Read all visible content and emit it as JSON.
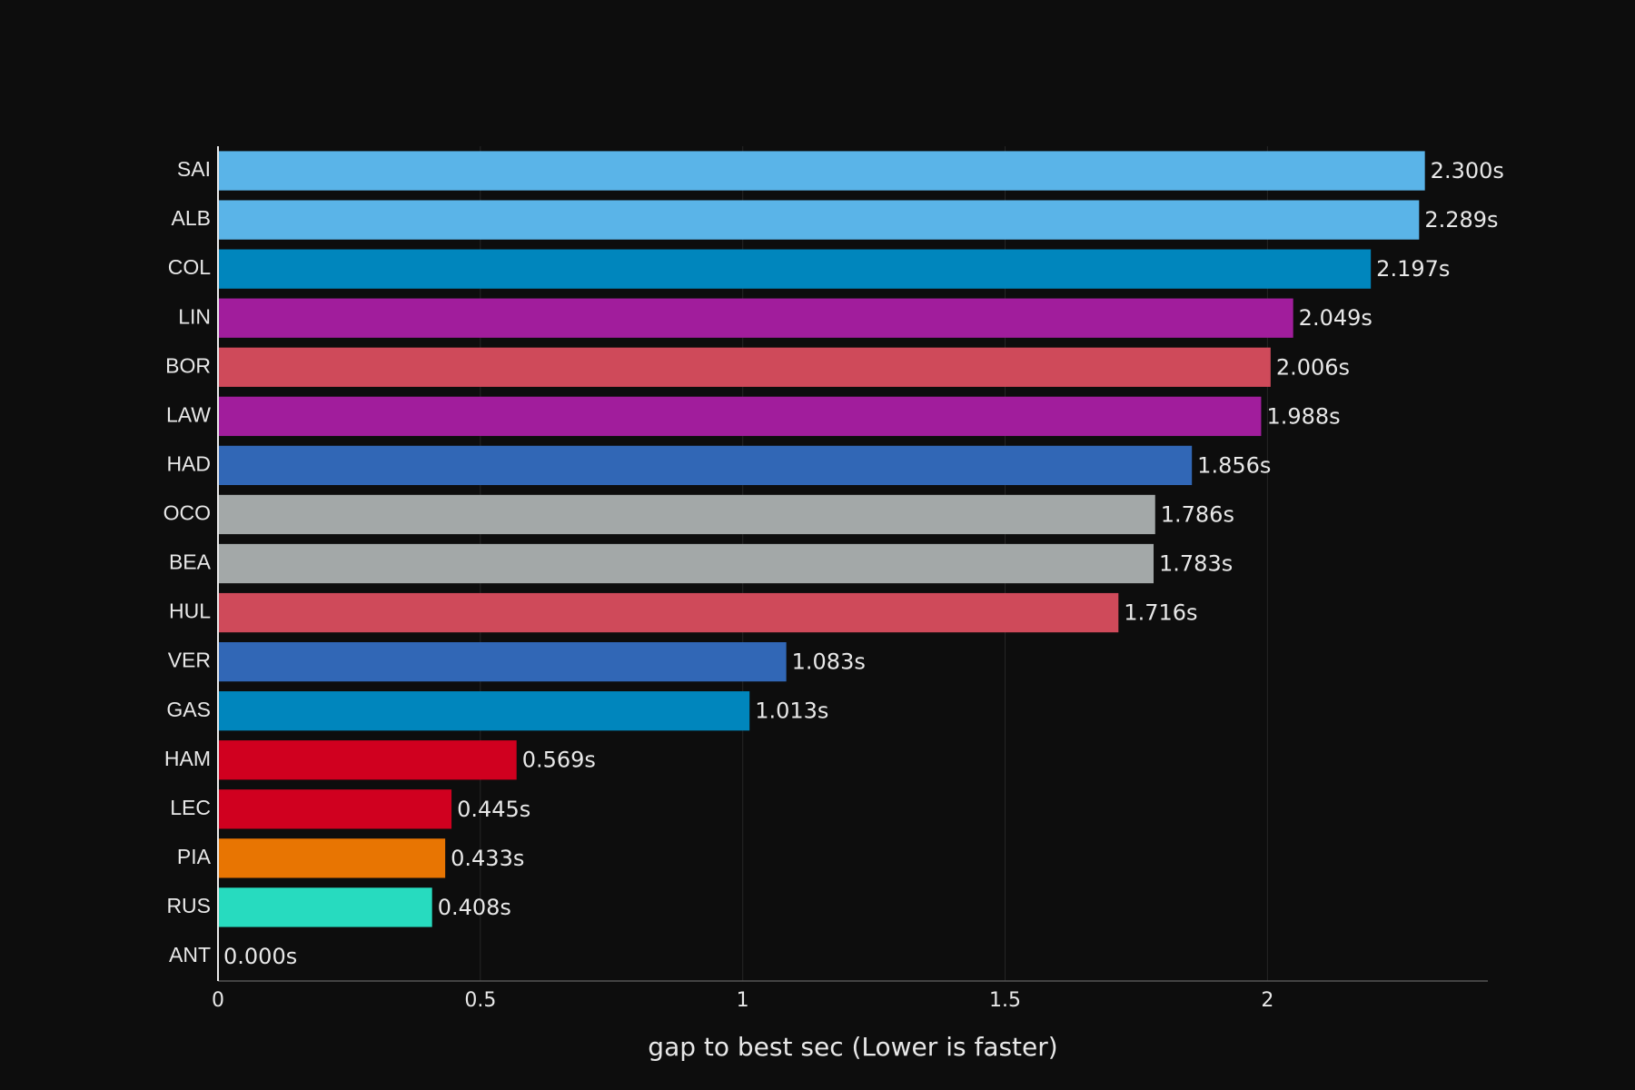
{
  "chart_data": {
    "type": "hbar",
    "x_label": "gap to best sec (Lower is faster)",
    "categories": [
      "SAI",
      "ALB",
      "COL",
      "LIN",
      "BOR",
      "LAW",
      "HAD",
      "OCO",
      "BEA",
      "HUL",
      "VER",
      "GAS",
      "HAM",
      "LEC",
      "PIA",
      "RUS",
      "ANT"
    ],
    "values": [
      2.3,
      2.289,
      2.197,
      2.049,
      2.006,
      1.988,
      1.856,
      1.786,
      1.783,
      1.716,
      1.083,
      1.013,
      0.569,
      0.445,
      0.433,
      0.408,
      0
    ],
    "value_labels": [
      "2.300s",
      "2.289s",
      "2.197s",
      "2.049s",
      "2.006s",
      "1.988s",
      "1.856s",
      "1.786s",
      "1.783s",
      "1.716s",
      "1.083s",
      "1.013s",
      "0.569s",
      "0.445s",
      "0.433s",
      "0.408s",
      "0.000s"
    ],
    "colors": [
      "#5ab4e8",
      "#5ab4e8",
      "#0086bd",
      "#a11d9c",
      "#cf4a5a",
      "#a11d9c",
      "#3167b6",
      "#a3a8a8",
      "#a3a8a8",
      "#cf4a5a",
      "#3167b6",
      "#0086bd",
      "#d0001f",
      "#d0001f",
      "#e87502",
      "#27dbbf",
      "#ffffff"
    ],
    "xlim": [
      0,
      2.42
    ],
    "xticks": [
      0,
      0.5,
      1,
      1.5,
      2
    ],
    "grid": true
  }
}
